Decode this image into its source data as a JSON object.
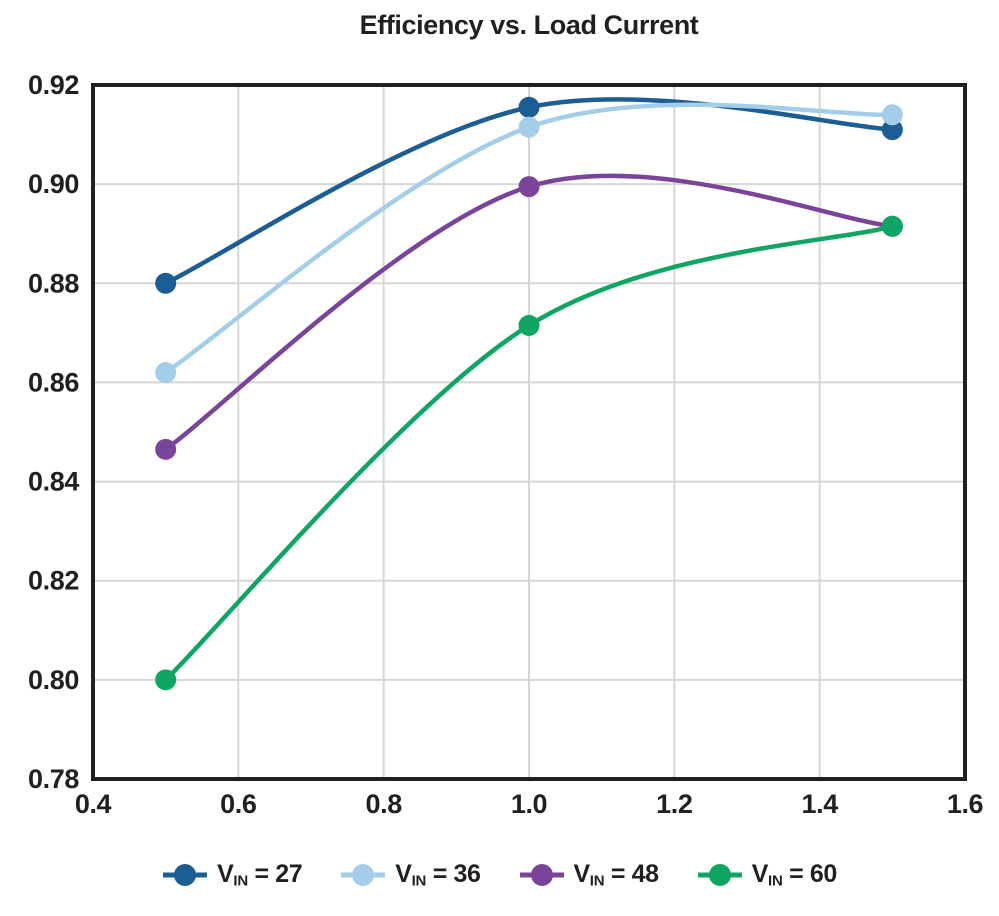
{
  "chart_data": {
    "type": "line",
    "title": "Efficiency vs. Load Current",
    "xlabel": "",
    "ylabel": "",
    "x": [
      0.5,
      1.0,
      1.5
    ],
    "series": [
      {
        "name": "VIN = 27",
        "legend_base": "V",
        "legend_sub": "IN",
        "legend_rest": " = 27",
        "color": "#1c5d93",
        "values": [
          0.88,
          0.9155,
          0.911
        ]
      },
      {
        "name": "VIN = 36",
        "legend_base": "V",
        "legend_sub": "IN",
        "legend_rest": " = 36",
        "color": "#a3cde9",
        "values": [
          0.862,
          0.9115,
          0.914
        ]
      },
      {
        "name": "VIN = 48",
        "legend_base": "V",
        "legend_sub": "IN",
        "legend_rest": " = 48",
        "color": "#7a449b",
        "values": [
          0.8465,
          0.8995,
          0.8915
        ]
      },
      {
        "name": "VIN = 60",
        "legend_base": "V",
        "legend_sub": "IN",
        "legend_rest": " = 60",
        "color": "#10a563",
        "values": [
          0.8,
          0.8715,
          0.8915
        ]
      }
    ],
    "xlim": [
      0.4,
      1.6
    ],
    "ylim": [
      0.78,
      0.92
    ],
    "xticks": [
      0.4,
      0.6,
      0.8,
      1.0,
      1.2,
      1.4,
      1.6
    ],
    "xtick_labels": [
      "0.4",
      "0.6",
      "0.8",
      "1.0",
      "1.2",
      "1.4",
      "1.6"
    ],
    "yticks": [
      0.78,
      0.8,
      0.82,
      0.84,
      0.86,
      0.88,
      0.9,
      0.92
    ],
    "ytick_labels": [
      "0.78",
      "0.80",
      "0.82",
      "0.84",
      "0.86",
      "0.88",
      "0.90",
      "0.92"
    ],
    "grid": true,
    "curve": "smooth",
    "legend_position": "bottom",
    "colors": {
      "frame": "#231f20",
      "grid": "#d6d6d6",
      "text": "#231f20",
      "background": "#ffffff"
    }
  }
}
